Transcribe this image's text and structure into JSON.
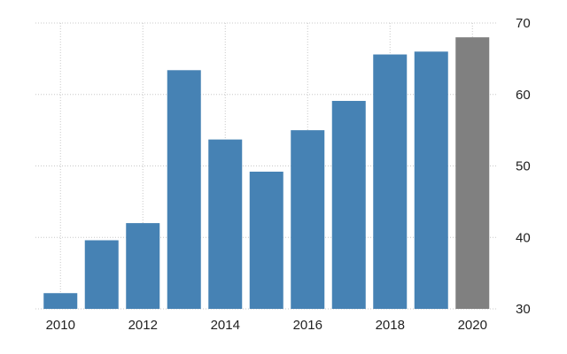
{
  "chart_data": {
    "type": "bar",
    "categories": [
      "2010",
      "2011",
      "2012",
      "2013",
      "2014",
      "2015",
      "2016",
      "2017",
      "2018",
      "2019",
      "2020"
    ],
    "values": [
      32.2,
      39.6,
      42.0,
      63.4,
      53.7,
      49.2,
      55.0,
      59.1,
      65.6,
      66.0,
      68.0
    ],
    "bar_colors": [
      "#4682b4",
      "#4682b4",
      "#4682b4",
      "#4682b4",
      "#4682b4",
      "#4682b4",
      "#4682b4",
      "#4682b4",
      "#4682b4",
      "#4682b4",
      "#808080"
    ],
    "x_tick_labels": [
      "2010",
      "2012",
      "2014",
      "2016",
      "2018",
      "2020"
    ],
    "y_tick_labels": [
      "30",
      "40",
      "50",
      "60",
      "70"
    ],
    "y_ticks": [
      30,
      40,
      50,
      60,
      70
    ],
    "ylim": [
      30,
      70
    ],
    "y_axis_position": "right",
    "grid": true,
    "legend": false,
    "title": "",
    "xlabel": "",
    "ylabel": ""
  }
}
